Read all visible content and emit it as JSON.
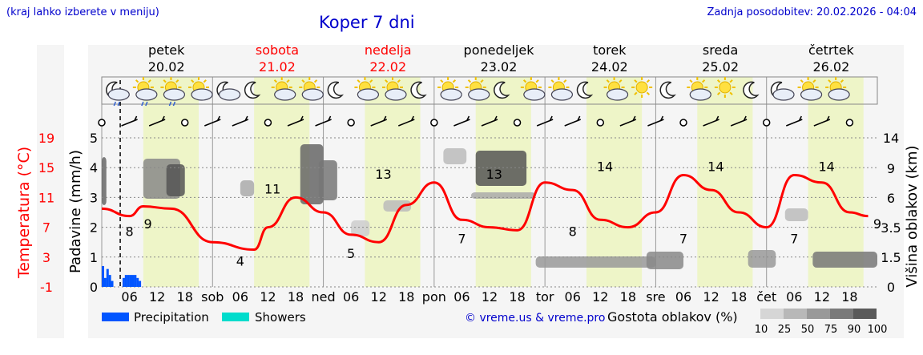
{
  "header": {
    "hint": "(kraj lahko izberete v meniju)",
    "title": "Koper 7 dni",
    "updated": "Zadnja posodobitev: 20.02.2026 - 04:04"
  },
  "days": [
    {
      "name": "petek",
      "date": "20.02",
      "weekend": false
    },
    {
      "name": "sobota",
      "date": "21.02",
      "weekend": true
    },
    {
      "name": "nedelja",
      "date": "22.02",
      "weekend": true
    },
    {
      "name": "ponedeljek",
      "date": "23.02",
      "weekend": false
    },
    {
      "name": "torek",
      "date": "24.02",
      "weekend": false
    },
    {
      "name": "sreda",
      "date": "25.02",
      "weekend": false
    },
    {
      "name": "četrtek",
      "date": "26.02",
      "weekend": false
    }
  ],
  "weather_icons": [
    "night-cloud-rain",
    "day-cloud-rain",
    "day-cloud-rain",
    "sun-cloud",
    "moon-cloud",
    "moon",
    "sun-cloud",
    "day-cloud",
    "moon",
    "sun-partly",
    "sun-partly",
    "moon",
    "sun-partly",
    "sun-partly",
    "moon",
    "sun-partly",
    "sun-partly",
    "moon",
    "sun-partly",
    "sun",
    "moon",
    "sun-partly",
    "sun",
    "moon",
    "moon-cloud",
    "day-cloud",
    "day-cloud"
  ],
  "colors": {
    "temperature": "#ff0000",
    "precipitation": "#0055ff",
    "showers": "#00dccc",
    "daytime_band": "#eef5c8",
    "night_band": "#f5f5f5",
    "labels": "#0000cc"
  },
  "chart_data": {
    "type": "line",
    "x_axis": {
      "ticks": [
        "06",
        "12",
        "18",
        "sob",
        "06",
        "12",
        "18",
        "ned",
        "06",
        "12",
        "18",
        "pon",
        "06",
        "12",
        "18",
        "tor",
        "06",
        "12",
        "18",
        "sre",
        "06",
        "12",
        "18",
        "čet",
        "06",
        "12",
        "18"
      ],
      "start": "20.02 00:00",
      "end": "27.02 00:00"
    },
    "axes": {
      "left_temperature": {
        "label": "Temperatura (°C)",
        "ticks": [
          19,
          15,
          11,
          7,
          3,
          -1
        ],
        "range": [
          -1,
          19
        ]
      },
      "left_precipitation": {
        "label": "Padavine (mm/h)",
        "ticks": [
          0,
          1,
          2,
          3,
          4,
          5
        ],
        "range": [
          0,
          5
        ]
      },
      "right_cloud_height": {
        "label": "Višina oblakov (km)",
        "ticks": [
          0,
          1.5,
          3.5,
          6.0,
          9.0,
          14
        ],
        "range": [
          0,
          14
        ]
      }
    },
    "series": [
      {
        "name": "Temperatura",
        "x_hours": [
          0,
          6,
          9,
          15,
          24,
          33,
          36,
          42,
          48,
          54,
          60,
          66,
          72,
          78,
          84,
          90,
          96,
          102,
          108,
          114,
          120,
          126,
          132,
          138,
          144,
          150,
          156,
          162,
          166
        ],
        "values": [
          9.5,
          8.5,
          9.8,
          9.5,
          5,
          4,
          7,
          11,
          9,
          6,
          5,
          10,
          13,
          8,
          7,
          6.6,
          13,
          12,
          8,
          7,
          9,
          14,
          12,
          9,
          7,
          14,
          13,
          9,
          8.5
        ]
      },
      {
        "name": "Precipitation",
        "x_hours": [
          0,
          0.5,
          1,
          1.5,
          2,
          3,
          4,
          4.5,
          5,
          5.5,
          6,
          6.5,
          7,
          7.5,
          8
        ],
        "values": [
          0.7,
          0.3,
          0.6,
          0.4,
          0.2,
          0.0,
          0.0,
          0.3,
          0.4,
          0.4,
          0.4,
          0.4,
          0.4,
          0.3,
          0.2
        ]
      }
    ],
    "point_labels": [
      {
        "label": "8",
        "hour": 6,
        "value": 8
      },
      {
        "label": "9",
        "hour": 10,
        "value": 9
      },
      {
        "label": "4",
        "hour": 30,
        "value": 4
      },
      {
        "label": "11",
        "hour": 37,
        "value": 11
      },
      {
        "label": "5",
        "hour": 54,
        "value": 5
      },
      {
        "label": "13",
        "hour": 61,
        "value": 13
      },
      {
        "label": "7",
        "hour": 78,
        "value": 7
      },
      {
        "label": "13",
        "hour": 85,
        "value": 13
      },
      {
        "label": "8",
        "hour": 102,
        "value": 8
      },
      {
        "label": "14",
        "hour": 109,
        "value": 14
      },
      {
        "label": "7",
        "hour": 126,
        "value": 7
      },
      {
        "label": "14",
        "hour": 133,
        "value": 14
      },
      {
        "label": "7",
        "hour": 150,
        "value": 7
      },
      {
        "label": "14",
        "hour": 157,
        "value": 14
      },
      {
        "label": "9",
        "hour": 168,
        "value": 9
      }
    ],
    "legend": {
      "precipitation": "Precipitation",
      "showers": "Showers",
      "copyright": "© vreme.us & vreme.pro",
      "cloud_density_title": "Gostota oblakov (%)",
      "cloud_density_levels": [
        "10",
        "25",
        "50",
        "75",
        "90",
        "100"
      ]
    }
  }
}
